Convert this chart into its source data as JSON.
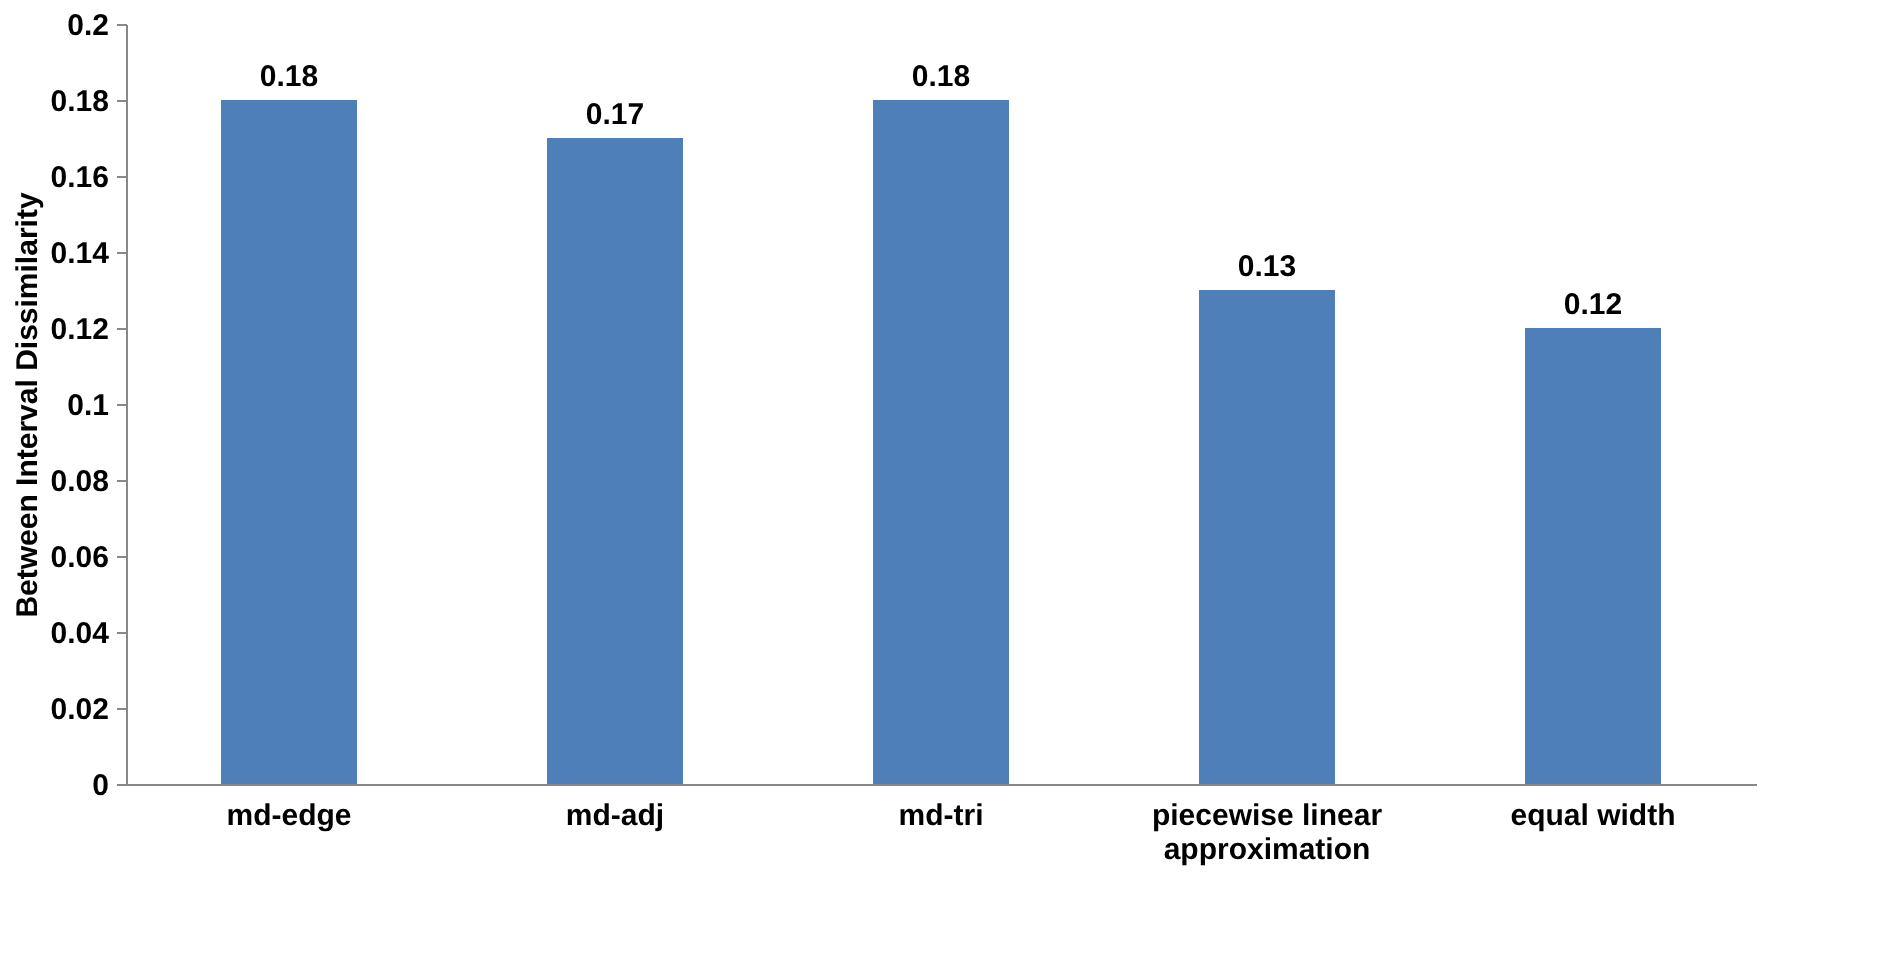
{
  "chart_data": {
    "type": "bar",
    "ylabel": "Between Interval Dissimilarity",
    "categories": [
      "md-edge",
      "md-adj",
      "md-tri",
      "piecewise linear approximation",
      "equal width"
    ],
    "values": [
      0.18,
      0.17,
      0.18,
      0.13,
      0.12
    ],
    "color": "#4f7fb8",
    "ylim": [
      0,
      0.2
    ],
    "yticks": [
      0,
      0.02,
      0.04,
      0.06,
      0.08,
      0.1,
      0.12,
      0.14,
      0.16,
      0.18,
      0.2
    ],
    "data_labels": true,
    "grid": false
  }
}
